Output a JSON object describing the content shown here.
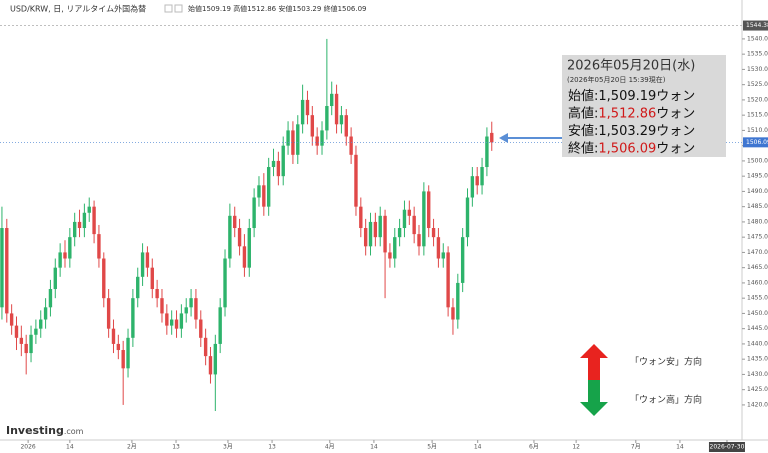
{
  "chart_data": {
    "type": "candlestick",
    "title": "USD/KRW, 日, リアルタイム外国為替",
    "ohlc_labels": [
      "始値",
      "高値",
      "安値",
      "終値"
    ],
    "up_color": "#2db36b",
    "down_color": "#e04848",
    "grid": false,
    "xlim": [
      -0.4,
      152.6
    ],
    "xticks": [
      {
        "value": 5.4,
        "label": "2026"
      },
      {
        "value": 14,
        "label": "14"
      },
      {
        "value": 26.8,
        "label": "2月"
      },
      {
        "value": 35.9,
        "label": "13"
      },
      {
        "value": 46.6,
        "label": "3月"
      },
      {
        "value": 55.7,
        "label": "13"
      },
      {
        "value": 67.6,
        "label": "4月"
      },
      {
        "value": 76.7,
        "label": "14"
      },
      {
        "value": 88.7,
        "label": "5月"
      },
      {
        "value": 98.1,
        "label": "14"
      },
      {
        "value": 109.7,
        "label": "6月"
      },
      {
        "value": 118.4,
        "label": "12"
      },
      {
        "value": 130.7,
        "label": "7月"
      },
      {
        "value": 139.8,
        "label": "14"
      },
      {
        "value": 149.5,
        "label": "2026-07-30"
      }
    ],
    "ylim": [
      1408.5,
      1546.2
    ],
    "yticks": [
      {
        "value": 1420,
        "label": "1420.00"
      },
      {
        "value": 1425,
        "label": "1425.00"
      },
      {
        "value": 1430,
        "label": "1430.00"
      },
      {
        "value": 1435,
        "label": "1435.00"
      },
      {
        "value": 1440,
        "label": "1440.00"
      },
      {
        "value": 1445,
        "label": "1445.00"
      },
      {
        "value": 1450,
        "label": "1450.00"
      },
      {
        "value": 1455,
        "label": "1455.00"
      },
      {
        "value": 1460,
        "label": "1460.00"
      },
      {
        "value": 1465,
        "label": "1465.00"
      },
      {
        "value": 1470,
        "label": "1470.00"
      },
      {
        "value": 1475,
        "label": "1475.00"
      },
      {
        "value": 1480,
        "label": "1480.00"
      },
      {
        "value": 1485,
        "label": "1485.00"
      },
      {
        "value": 1490,
        "label": "1490.00"
      },
      {
        "value": 1495,
        "label": "1495.00"
      },
      {
        "value": 1500,
        "label": "1500.00"
      },
      {
        "value": 1505,
        "label": "1505.00"
      },
      {
        "value": 1510,
        "label": "1510.00"
      },
      {
        "value": 1515,
        "label": "1515.00"
      },
      {
        "value": 1520,
        "label": "1520.00"
      },
      {
        "value": 1525,
        "label": "1525.00"
      },
      {
        "value": 1530,
        "label": "1530.00"
      },
      {
        "value": 1535,
        "label": "1535.00"
      },
      {
        "value": 1540,
        "label": "1540.00"
      }
    ],
    "top_line": 1544.38,
    "open": [
      1452,
      1478,
      1450,
      1446,
      1442,
      1440,
      1437,
      1443,
      1445,
      1448,
      1452,
      1458,
      1465,
      1470,
      1468,
      1475,
      1480,
      1478,
      1483,
      1485,
      1476,
      1468,
      1455,
      1445,
      1440,
      1438,
      1432,
      1442,
      1455,
      1462,
      1470,
      1465,
      1458,
      1455,
      1450,
      1446,
      1448,
      1445,
      1450,
      1452,
      1455,
      1448,
      1442,
      1436,
      1430,
      1440,
      1452,
      1468,
      1482,
      1478,
      1472,
      1465,
      1478,
      1488,
      1492,
      1485,
      1498,
      1500,
      1495,
      1505,
      1510,
      1502,
      1512,
      1520,
      1515,
      1508,
      1505,
      1510,
      1518,
      1522,
      1512,
      1515,
      1508,
      1502,
      1485,
      1478,
      1472,
      1480,
      1475,
      1482,
      1470,
      1468,
      1475,
      1478,
      1484,
      1482,
      1476,
      1472,
      1490,
      1478,
      1475,
      1468,
      1470,
      1452,
      1448,
      1460,
      1475,
      1488,
      1495,
      1492,
      1498,
      1509.19
    ],
    "high": [
      1485,
      1481,
      1453,
      1449,
      1446,
      1443,
      1446,
      1448,
      1451,
      1455,
      1461,
      1468,
      1473,
      1474,
      1478,
      1483,
      1484,
      1486,
      1488,
      1487,
      1479,
      1470,
      1458,
      1448,
      1443,
      1441,
      1445,
      1458,
      1465,
      1473,
      1472,
      1468,
      1461,
      1458,
      1453,
      1451,
      1451,
      1453,
      1455,
      1458,
      1458,
      1451,
      1445,
      1439,
      1443,
      1455,
      1471,
      1486,
      1485,
      1481,
      1476,
      1481,
      1491,
      1495,
      1496,
      1501,
      1504,
      1503,
      1508,
      1513,
      1513,
      1515,
      1525,
      1523,
      1518,
      1511,
      1513,
      1540,
      1526,
      1525,
      1518,
      1517,
      1511,
      1505,
      1488,
      1481,
      1483,
      1483,
      1485,
      1484,
      1473,
      1478,
      1481,
      1487,
      1487,
      1485,
      1479,
      1493,
      1492,
      1481,
      1478,
      1473,
      1472,
      1455,
      1463,
      1478,
      1491,
      1498,
      1498,
      1501,
      1511,
      1512.86
    ],
    "low": [
      1448,
      1447,
      1443,
      1438,
      1436,
      1430,
      1434,
      1440,
      1442,
      1445,
      1449,
      1455,
      1462,
      1465,
      1465,
      1472,
      1475,
      1475,
      1480,
      1473,
      1465,
      1452,
      1442,
      1437,
      1435,
      1420,
      1429,
      1439,
      1452,
      1459,
      1462,
      1455,
      1452,
      1447,
      1443,
      1443,
      1442,
      1442,
      1447,
      1449,
      1445,
      1439,
      1433,
      1427,
      1418,
      1437,
      1449,
      1465,
      1475,
      1469,
      1462,
      1462,
      1475,
      1485,
      1482,
      1482,
      1495,
      1492,
      1492,
      1502,
      1499,
      1499,
      1509,
      1512,
      1505,
      1502,
      1502,
      1507,
      1515,
      1509,
      1509,
      1505,
      1499,
      1482,
      1475,
      1469,
      1469,
      1472,
      1472,
      1455,
      1465,
      1465,
      1472,
      1475,
      1479,
      1473,
      1469,
      1469,
      1475,
      1472,
      1465,
      1465,
      1449,
      1443,
      1445,
      1457,
      1472,
      1485,
      1489,
      1489,
      1495,
      1503.29
    ],
    "close": [
      1478,
      1450,
      1446,
      1442,
      1440,
      1437,
      1443,
      1445,
      1448,
      1452,
      1458,
      1465,
      1470,
      1468,
      1475,
      1480,
      1478,
      1483,
      1485,
      1476,
      1468,
      1455,
      1445,
      1440,
      1438,
      1432,
      1442,
      1455,
      1462,
      1470,
      1465,
      1458,
      1455,
      1450,
      1446,
      1448,
      1445,
      1450,
      1452,
      1455,
      1448,
      1442,
      1436,
      1430,
      1440,
      1452,
      1468,
      1482,
      1478,
      1472,
      1465,
      1478,
      1488,
      1492,
      1485,
      1498,
      1500,
      1495,
      1505,
      1510,
      1502,
      1512,
      1520,
      1515,
      1508,
      1505,
      1510,
      1518,
      1522,
      1512,
      1515,
      1508,
      1502,
      1485,
      1478,
      1472,
      1480,
      1475,
      1482,
      1470,
      1468,
      1475,
      1478,
      1484,
      1482,
      1476,
      1472,
      1490,
      1478,
      1475,
      1468,
      1470,
      1452,
      1448,
      1460,
      1475,
      1488,
      1495,
      1492,
      1498,
      1508,
      1506.09
    ],
    "annotation": {
      "date": "2026年05月20日(水)",
      "as_of": "(2026年05月20日 15:39現在)",
      "rows": [
        {
          "label": "始値:",
          "value_label": "1,509.19",
          "unit": "ウォン",
          "color": "#111111"
        },
        {
          "label": "高値:",
          "value_label": "1,512.86",
          "unit": "ウォン",
          "color": "#d01818"
        },
        {
          "label": "安値:",
          "value_label": "1,503.29",
          "unit": "ウォン",
          "color": "#111111"
        },
        {
          "label": "終値:",
          "value_label": "1,506.09",
          "unit": "ウォン",
          "color": "#d01818"
        }
      ]
    },
    "direction_labels": [
      "「ウォン安」方向",
      "「ウォン高」方向"
    ],
    "logo": [
      "Investing",
      ".com"
    ]
  }
}
